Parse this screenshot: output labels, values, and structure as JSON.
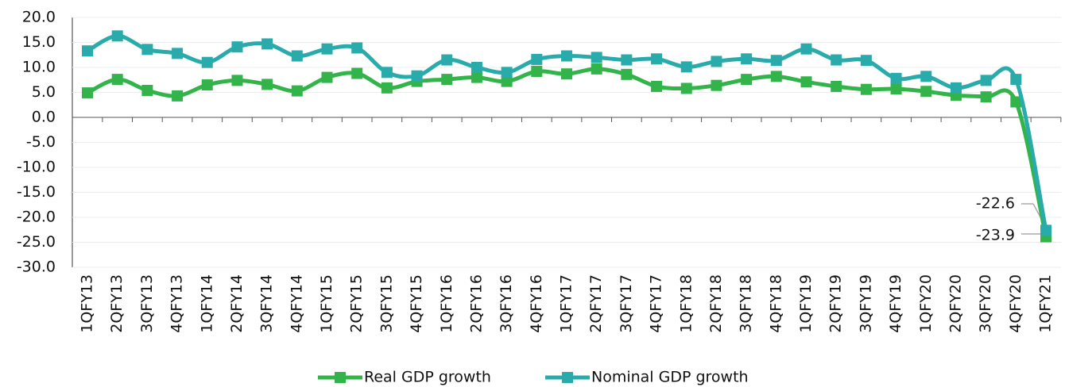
{
  "chart_data": {
    "type": "line",
    "categories": [
      "1QFY13",
      "2QFY13",
      "3QFY13",
      "4QFY13",
      "1QFY14",
      "2QFY14",
      "3QFY14",
      "4QFY14",
      "1QFY15",
      "2QFY15",
      "3QFY15",
      "4QFY15",
      "1QFY16",
      "2QFY16",
      "3QFY16",
      "4QFY16",
      "1QFY17",
      "2QFY17",
      "3QFY17",
      "4QFY17",
      "1QFY18",
      "2QFY18",
      "3QFY18",
      "4QFY18",
      "1QFY19",
      "2QFY19",
      "3QFY19",
      "4QFY19",
      "1QFY20",
      "2QFY20",
      "3QFY20",
      "4QFY20",
      "1QFY21"
    ],
    "series": [
      {
        "name": "Real GDP growth",
        "color": "#33b44a",
        "values": [
          4.9,
          7.6,
          5.4,
          4.3,
          6.5,
          7.4,
          6.6,
          5.3,
          8.0,
          8.8,
          5.9,
          7.2,
          7.6,
          8.0,
          7.2,
          9.2,
          8.7,
          9.7,
          8.6,
          6.2,
          5.8,
          6.4,
          7.6,
          8.2,
          7.1,
          6.2,
          5.6,
          5.7,
          5.2,
          4.4,
          4.1,
          3.1,
          -23.9
        ]
      },
      {
        "name": "Nominal GDP growth",
        "color": "#2aabab",
        "values": [
          13.3,
          16.3,
          13.6,
          12.8,
          11.0,
          14.1,
          14.7,
          12.3,
          13.7,
          13.9,
          9.0,
          8.3,
          11.5,
          10.0,
          9.0,
          11.6,
          12.3,
          12.0,
          11.5,
          11.7,
          10.1,
          11.2,
          11.7,
          11.4,
          13.7,
          11.5,
          11.4,
          7.8,
          8.2,
          5.9,
          7.4,
          7.6,
          -22.6
        ]
      }
    ],
    "ylim": [
      -30,
      20
    ],
    "yticks": [
      {
        "value": -30,
        "label": "-30.0"
      },
      {
        "value": -25,
        "label": "-25.0"
      },
      {
        "value": -20,
        "label": "-20.0"
      },
      {
        "value": -15,
        "label": "-15.0"
      },
      {
        "value": -10,
        "label": "-10.0"
      },
      {
        "value": -5,
        "label": "-5.0"
      },
      {
        "value": 0,
        "label": "0.0"
      },
      {
        "value": 5,
        "label": "5.0"
      },
      {
        "value": 10,
        "label": "10.0"
      },
      {
        "value": 15,
        "label": "15.0"
      },
      {
        "value": 20,
        "label": "20.0"
      }
    ],
    "grid": true,
    "legend": "bottom"
  }
}
